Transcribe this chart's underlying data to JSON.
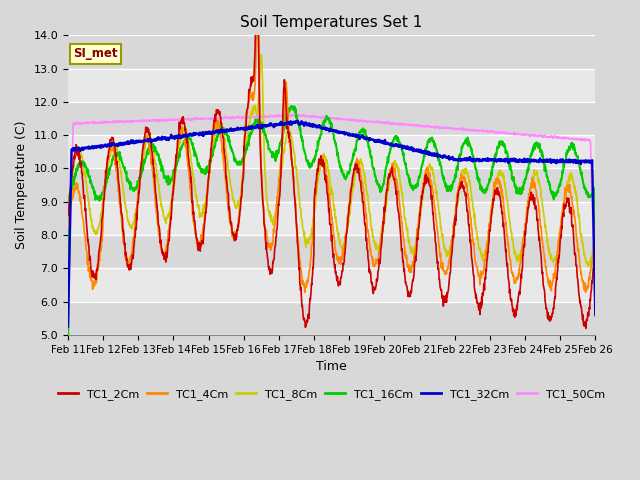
{
  "title": "Soil Temperatures Set 1",
  "xlabel": "Time",
  "ylabel": "Soil Temperature (C)",
  "ylim": [
    5.0,
    14.0
  ],
  "yticks": [
    5.0,
    6.0,
    7.0,
    8.0,
    9.0,
    10.0,
    11.0,
    12.0,
    13.0,
    14.0
  ],
  "xtick_labels": [
    "Feb 11",
    "Feb 12",
    "Feb 13",
    "Feb 14",
    "Feb 15",
    "Feb 16",
    "Feb 17",
    "Feb 18",
    "Feb 19",
    "Feb 20",
    "Feb 21",
    "Feb 22",
    "Feb 23",
    "Feb 24",
    "Feb 25",
    "Feb 26"
  ],
  "colors": {
    "TC1_2Cm": "#cc0000",
    "TC1_4Cm": "#ff8800",
    "TC1_8Cm": "#cccc00",
    "TC1_16Cm": "#00cc00",
    "TC1_32Cm": "#0000cc",
    "TC1_50Cm": "#ff88ff"
  },
  "legend_label": "SI_met",
  "fig_bg_color": "#d8d8d8",
  "plot_bg_color": "#e8e8e8",
  "grid_color": "#ffffff",
  "band_color": "#d8d8d8",
  "n_points": 1500
}
